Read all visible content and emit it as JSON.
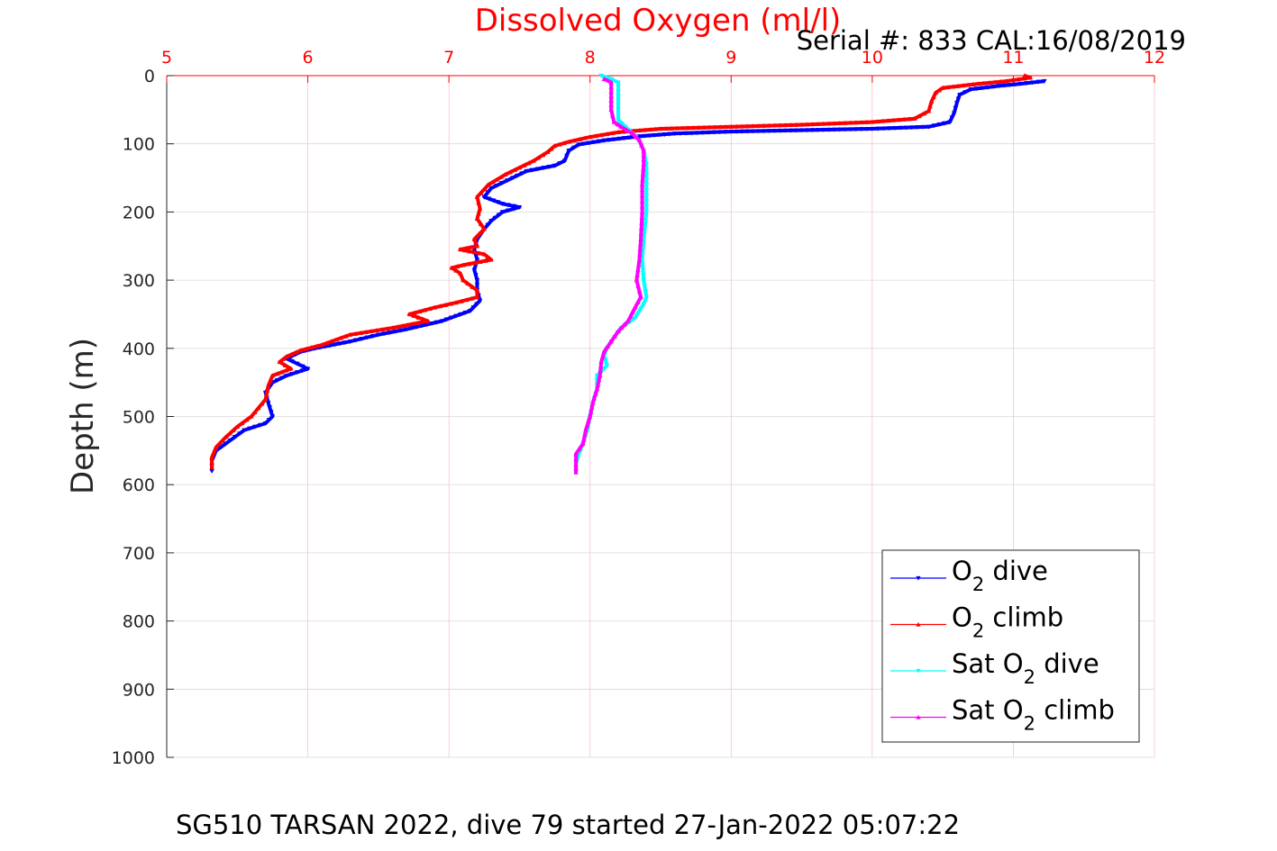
{
  "chart_data": {
    "type": "line",
    "title": "Dissolved Oxygen (ml/l)",
    "serial_text": "Serial #: 833  CAL:16/08/2019",
    "caption": "SG510 TARSAN 2022, dive 79 started 27-Jan-2022 05:07:22",
    "ylabel": "Depth (m)",
    "xlim": [
      5,
      12
    ],
    "ylim": [
      0,
      1000
    ],
    "y_reversed": true,
    "x_axis_position": "top",
    "grid": true,
    "x_ticks": [
      "5",
      "6",
      "7",
      "8",
      "9",
      "10",
      "11",
      "12"
    ],
    "y_ticks": [
      "0",
      "100",
      "200",
      "300",
      "400",
      "500",
      "600",
      "700",
      "800",
      "900",
      "1000"
    ],
    "legend_position": "bottom-right",
    "series": [
      {
        "name": "O2 dive",
        "legend_base": "O",
        "legend_sub": "2",
        "legend_rest": " dive",
        "color": "#0000ff",
        "marker": "triangle-down",
        "points": [
          [
            11.22,
            8
          ],
          [
            11.05,
            12
          ],
          [
            10.9,
            15
          ],
          [
            10.7,
            20
          ],
          [
            10.62,
            28
          ],
          [
            10.6,
            40
          ],
          [
            10.58,
            55
          ],
          [
            10.55,
            68
          ],
          [
            10.4,
            75
          ],
          [
            10.0,
            78
          ],
          [
            9.5,
            80
          ],
          [
            9.0,
            82
          ],
          [
            8.6,
            85
          ],
          [
            8.35,
            89
          ],
          [
            8.1,
            95
          ],
          [
            7.92,
            101
          ],
          [
            7.85,
            110
          ],
          [
            7.82,
            125
          ],
          [
            7.75,
            132
          ],
          [
            7.55,
            140
          ],
          [
            7.45,
            150
          ],
          [
            7.3,
            165
          ],
          [
            7.25,
            178
          ],
          [
            7.38,
            188
          ],
          [
            7.5,
            193
          ],
          [
            7.38,
            200
          ],
          [
            7.3,
            213
          ],
          [
            7.25,
            225
          ],
          [
            7.2,
            240
          ],
          [
            7.18,
            255
          ],
          [
            7.2,
            270
          ],
          [
            7.18,
            285
          ],
          [
            7.2,
            300
          ],
          [
            7.2,
            315
          ],
          [
            7.22,
            330
          ],
          [
            7.15,
            345
          ],
          [
            6.95,
            360
          ],
          [
            6.7,
            372
          ],
          [
            6.5,
            380
          ],
          [
            6.3,
            390
          ],
          [
            6.05,
            400
          ],
          [
            5.95,
            405
          ],
          [
            5.85,
            415
          ],
          [
            6.0,
            430
          ],
          [
            5.85,
            440
          ],
          [
            5.75,
            450
          ],
          [
            5.7,
            465
          ],
          [
            5.72,
            480
          ],
          [
            5.75,
            500
          ],
          [
            5.7,
            510
          ],
          [
            5.55,
            520
          ],
          [
            5.45,
            535
          ],
          [
            5.35,
            550
          ],
          [
            5.32,
            565
          ],
          [
            5.32,
            580
          ]
        ]
      },
      {
        "name": "O2 climb",
        "legend_base": "O",
        "legend_sub": "2",
        "legend_rest": " climb",
        "color": "#ff0000",
        "marker": "triangle-up",
        "points": [
          [
            11.08,
            0
          ],
          [
            11.12,
            3
          ],
          [
            10.95,
            8
          ],
          [
            10.75,
            12
          ],
          [
            10.5,
            18
          ],
          [
            10.45,
            25
          ],
          [
            10.42,
            38
          ],
          [
            10.4,
            52
          ],
          [
            10.3,
            63
          ],
          [
            10.0,
            68
          ],
          [
            9.5,
            72
          ],
          [
            9.0,
            75
          ],
          [
            8.5,
            78
          ],
          [
            8.2,
            83
          ],
          [
            8.0,
            90
          ],
          [
            7.85,
            97
          ],
          [
            7.75,
            103
          ],
          [
            7.7,
            112
          ],
          [
            7.6,
            125
          ],
          [
            7.5,
            135
          ],
          [
            7.4,
            145
          ],
          [
            7.28,
            160
          ],
          [
            7.2,
            178
          ],
          [
            7.22,
            195
          ],
          [
            7.2,
            210
          ],
          [
            7.25,
            225
          ],
          [
            7.18,
            240
          ],
          [
            7.2,
            250
          ],
          [
            7.08,
            255
          ],
          [
            7.25,
            262
          ],
          [
            7.3,
            270
          ],
          [
            7.1,
            278
          ],
          [
            7.02,
            282
          ],
          [
            7.08,
            290
          ],
          [
            7.1,
            300
          ],
          [
            7.2,
            315
          ],
          [
            7.2,
            325
          ],
          [
            7.05,
            333
          ],
          [
            6.9,
            340
          ],
          [
            6.72,
            350
          ],
          [
            6.85,
            360
          ],
          [
            6.6,
            370
          ],
          [
            6.3,
            380
          ],
          [
            6.1,
            395
          ],
          [
            5.95,
            403
          ],
          [
            5.85,
            412
          ],
          [
            5.8,
            420
          ],
          [
            5.88,
            430
          ],
          [
            5.75,
            440
          ],
          [
            5.72,
            455
          ],
          [
            5.7,
            475
          ],
          [
            5.6,
            500
          ],
          [
            5.5,
            515
          ],
          [
            5.42,
            530
          ],
          [
            5.35,
            545
          ],
          [
            5.32,
            560
          ],
          [
            5.32,
            575
          ]
        ]
      },
      {
        "name": "Sat O2 dive",
        "legend_base": "Sat O",
        "legend_sub": "2",
        "legend_rest": " dive",
        "color": "#00ffff",
        "marker": "triangle-down",
        "points": [
          [
            8.08,
            0
          ],
          [
            8.15,
            5
          ],
          [
            8.2,
            10
          ],
          [
            8.2,
            30
          ],
          [
            8.2,
            50
          ],
          [
            8.2,
            65
          ],
          [
            8.25,
            75
          ],
          [
            8.3,
            85
          ],
          [
            8.35,
            95
          ],
          [
            8.38,
            110
          ],
          [
            8.4,
            130
          ],
          [
            8.4,
            160
          ],
          [
            8.4,
            200
          ],
          [
            8.38,
            240
          ],
          [
            8.37,
            270
          ],
          [
            8.38,
            300
          ],
          [
            8.4,
            325
          ],
          [
            8.38,
            335
          ],
          [
            8.32,
            355
          ],
          [
            8.22,
            370
          ],
          [
            8.15,
            390
          ],
          [
            8.12,
            400
          ],
          [
            8.1,
            410
          ],
          [
            8.12,
            425
          ],
          [
            8.05,
            440
          ],
          [
            8.05,
            460
          ],
          [
            8.02,
            480
          ],
          [
            8.0,
            500
          ],
          [
            7.98,
            520
          ],
          [
            7.95,
            540
          ],
          [
            7.92,
            555
          ],
          [
            7.9,
            570
          ],
          [
            7.9,
            582
          ]
        ]
      },
      {
        "name": "Sat O2 climb",
        "legend_base": "Sat O",
        "legend_sub": "2",
        "legend_rest": " climb",
        "color": "#ff00ff",
        "marker": "triangle-up",
        "points": [
          [
            8.1,
            5
          ],
          [
            8.15,
            10
          ],
          [
            8.15,
            30
          ],
          [
            8.15,
            50
          ],
          [
            8.17,
            68
          ],
          [
            8.22,
            75
          ],
          [
            8.3,
            85
          ],
          [
            8.35,
            95
          ],
          [
            8.38,
            110
          ],
          [
            8.38,
            130
          ],
          [
            8.37,
            160
          ],
          [
            8.37,
            200
          ],
          [
            8.36,
            240
          ],
          [
            8.35,
            270
          ],
          [
            8.33,
            300
          ],
          [
            8.36,
            325
          ],
          [
            8.32,
            340
          ],
          [
            8.27,
            360
          ],
          [
            8.2,
            375
          ],
          [
            8.15,
            390
          ],
          [
            8.1,
            405
          ],
          [
            8.08,
            420
          ],
          [
            8.07,
            440
          ],
          [
            8.05,
            460
          ],
          [
            8.02,
            480
          ],
          [
            8.0,
            500
          ],
          [
            7.97,
            520
          ],
          [
            7.95,
            540
          ],
          [
            7.9,
            555
          ],
          [
            7.9,
            570
          ],
          [
            7.9,
            582
          ]
        ]
      }
    ]
  }
}
